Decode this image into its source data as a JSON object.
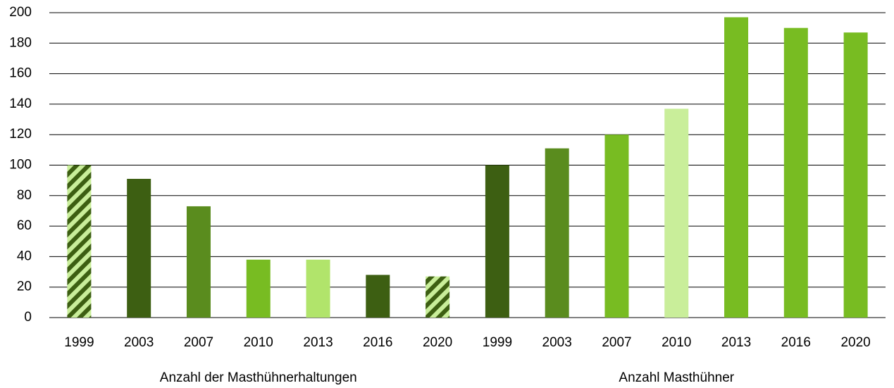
{
  "chart_data": {
    "type": "bar",
    "categories": [
      "1999",
      "2003",
      "2007",
      "2010",
      "2013",
      "2016",
      "2020",
      "1999",
      "2003",
      "2007",
      "2010",
      "2013",
      "2016",
      "2020"
    ],
    "values": [
      100,
      91,
      73,
      38,
      38,
      28,
      27,
      100,
      111,
      120,
      137,
      197,
      190,
      187
    ],
    "colors": [
      "#3d5f12",
      "#3d5f12",
      "#5a8c1e",
      "#78bc22",
      "#b1e46b",
      "#3d5f12",
      "#3d5f12",
      "#3d5f12",
      "#5a8c1e",
      "#78bc22",
      "#c9ee9a",
      "#78bc22",
      "#78bc22",
      "#78bc22"
    ],
    "hatched": [
      true,
      false,
      false,
      false,
      false,
      false,
      true,
      false,
      false,
      false,
      false,
      false,
      false,
      false
    ],
    "hatch_color": "#c9ee9a",
    "groups": [
      "Anzahl der Masthühnerhaltungen",
      "Anzahl Masthühner"
    ],
    "ylim": [
      0,
      200
    ],
    "yticks": [
      0,
      20,
      40,
      60,
      80,
      100,
      120,
      140,
      160,
      180,
      200
    ],
    "grid": true
  }
}
